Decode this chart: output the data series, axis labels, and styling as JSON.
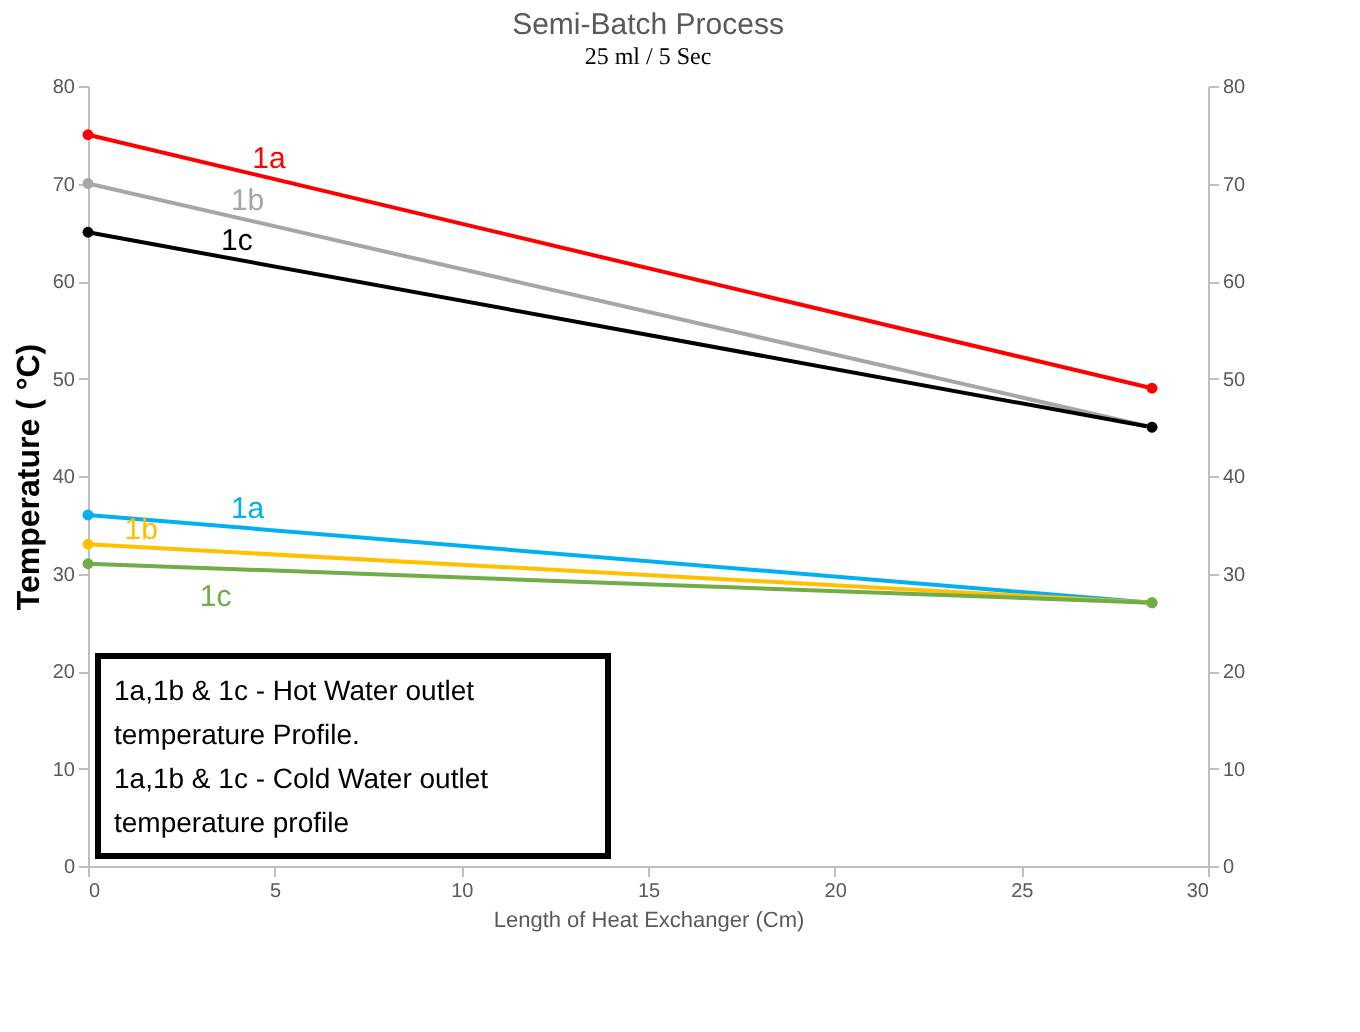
{
  "chart_data": {
    "type": "line",
    "title": "Semi-Batch Process",
    "subtitle": "25 ml / 5 Sec",
    "xlabel": "Length of Heat Exchanger (Cm)",
    "ylabel": "Temperature ( °C)",
    "xlim": [
      0,
      30
    ],
    "xticks": [
      0,
      5,
      10,
      15,
      20,
      25,
      30
    ],
    "ylim": [
      0,
      80
    ],
    "yticks": [
      0,
      10,
      20,
      30,
      40,
      50,
      60,
      70,
      80
    ],
    "y2lim": [
      0,
      80
    ],
    "y2ticks": [
      0,
      10,
      20,
      30,
      40,
      50,
      60,
      70,
      80
    ],
    "x": [
      0,
      28.5
    ],
    "grid": false,
    "legend": false,
    "marker": "circle",
    "line_style": "solid",
    "series": [
      {
        "name": "1a",
        "color": "#ff0000",
        "values": [
          75,
          49
        ]
      },
      {
        "name": "1b",
        "color": "#a6a6a6",
        "values": [
          70,
          45
        ]
      },
      {
        "name": "1c",
        "color": "#000000",
        "values": [
          65,
          45
        ]
      },
      {
        "name": "1a",
        "color": "#00b0f0",
        "values": [
          36,
          27
        ]
      },
      {
        "name": "1b",
        "color": "#ffc000",
        "values": [
          33,
          27
        ]
      },
      {
        "name": "1c",
        "color": "#70ad47",
        "values": [
          31,
          27
        ]
      }
    ],
    "annotations": [
      "1a,1b & 1c - Hot Water outlet",
      "temperature Profile.",
      "1a,1b & 1c - Cold Water outlet",
      "temperature profile"
    ]
  }
}
